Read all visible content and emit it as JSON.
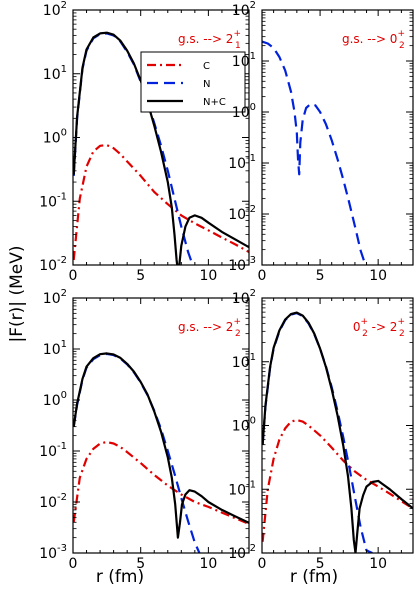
{
  "figure": {
    "ylabel": "|F(r)| (MeV)",
    "xlabel": "r (fm)"
  },
  "colors": {
    "C": "#e00000",
    "N": "#0022dd",
    "N+C": "#000000",
    "annotation": "#e00000"
  },
  "chart_data": [
    {
      "type": "line",
      "panel": "top-left",
      "annotation": {
        "text": "g.s. --> 2",
        "sup": "+",
        "sub": "1"
      },
      "xlim": [
        0,
        13
      ],
      "ylim": [
        0.01,
        100
      ],
      "yscale": "log",
      "xticks": [
        "0",
        "5",
        "10"
      ],
      "xtick_values": [
        0,
        5,
        10
      ],
      "yticks": [
        {
          "v": 0.01,
          "b": "10",
          "e": "-2"
        },
        {
          "v": 0.1,
          "b": "10",
          "e": "-1"
        },
        {
          "v": 1,
          "b": "10",
          "e": "0"
        },
        {
          "v": 10,
          "b": "10",
          "e": "1"
        },
        {
          "v": 100,
          "b": "10",
          "e": "2"
        }
      ],
      "legend": {
        "placement": "top-right",
        "entries": [
          "C",
          "N",
          "N+C"
        ]
      },
      "series": [
        {
          "name": "C",
          "style": "dashdot",
          "x": [
            0.05,
            0.5,
            1,
            1.5,
            2,
            2.5,
            3,
            3.5,
            4,
            5,
            6,
            7,
            8,
            9,
            10,
            11,
            12,
            13
          ],
          "y": [
            0.012,
            0.11,
            0.35,
            0.6,
            0.74,
            0.76,
            0.68,
            0.55,
            0.42,
            0.25,
            0.14,
            0.09,
            0.06,
            0.045,
            0.035,
            0.027,
            0.021,
            0.016
          ]
        },
        {
          "name": "N",
          "style": "dashed",
          "x": [
            0.05,
            0.3,
            0.7,
            1,
            1.5,
            2,
            2.5,
            3,
            3.5,
            4,
            4.5,
            5,
            5.5,
            6,
            6.5,
            7,
            7.5,
            8,
            8.5,
            9
          ],
          "y": [
            0.25,
            2,
            12,
            23,
            36,
            42,
            43,
            40,
            32,
            22,
            14,
            7.5,
            3.7,
            1.7,
            0.75,
            0.3,
            0.11,
            0.04,
            0.016,
            0.008
          ]
        },
        {
          "name": "N+C",
          "style": "solid",
          "x": [
            0.05,
            0.3,
            0.7,
            1,
            1.5,
            2,
            2.5,
            3,
            3.5,
            4,
            4.5,
            5,
            5.5,
            6,
            6.5,
            7,
            7.3,
            7.5,
            7.65,
            7.75,
            7.85,
            8,
            8.3,
            8.6,
            9,
            9.5,
            10,
            11,
            12,
            13
          ],
          "y": [
            0.26,
            2.1,
            12.5,
            24,
            37,
            43,
            44,
            41,
            33,
            23,
            14.5,
            7.8,
            3.6,
            1.55,
            0.6,
            0.2,
            0.08,
            0.03,
            0.012,
            0.008,
            0.01,
            0.02,
            0.04,
            0.055,
            0.06,
            0.055,
            0.046,
            0.033,
            0.025,
            0.019
          ]
        }
      ]
    },
    {
      "type": "line",
      "panel": "top-right",
      "annotation": {
        "text": "g.s. --> 0",
        "sup": "+",
        "sub": "2"
      },
      "xlim": [
        0,
        13
      ],
      "ylim": [
        0.001,
        100
      ],
      "yscale": "log",
      "xticks": [
        "0",
        "5",
        "10"
      ],
      "xtick_values": [
        0,
        5,
        10
      ],
      "yticks": [
        {
          "v": 0.001,
          "b": "10",
          "e": "-3"
        },
        {
          "v": 0.01,
          "b": "10",
          "e": "-2"
        },
        {
          "v": 0.1,
          "b": "10",
          "e": "-1"
        },
        {
          "v": 1,
          "b": "10",
          "e": "0"
        },
        {
          "v": 10,
          "b": "10",
          "e": "1"
        },
        {
          "v": 100,
          "b": "10",
          "e": "2"
        }
      ],
      "series": [
        {
          "name": "N",
          "style": "dashed",
          "x": [
            0,
            0.5,
            1,
            1.5,
            2,
            2.5,
            2.8,
            3,
            3.1,
            3.2,
            3.3,
            3.5,
            3.8,
            4.2,
            4.6,
            5,
            5.5,
            6,
            6.5,
            7,
            7.5,
            8,
            8.5,
            8.9
          ],
          "y": [
            24,
            22,
            18,
            12,
            6.5,
            2.5,
            1.0,
            0.4,
            0.12,
            0.06,
            0.25,
            0.7,
            1.2,
            1.45,
            1.35,
            1.0,
            0.58,
            0.28,
            0.12,
            0.047,
            0.017,
            0.0058,
            0.0019,
            0.001
          ]
        }
      ]
    },
    {
      "type": "line",
      "panel": "bottom-left",
      "annotation": {
        "text": "g.s. --> 2",
        "sup": "+",
        "sub": "2"
      },
      "xlim": [
        0,
        13
      ],
      "ylim": [
        0.001,
        100
      ],
      "yscale": "log",
      "xticks": [
        "0",
        "5",
        "10"
      ],
      "xtick_values": [
        0,
        5,
        10
      ],
      "yticks": [
        {
          "v": 0.001,
          "b": "10",
          "e": "-3"
        },
        {
          "v": 0.01,
          "b": "10",
          "e": "-2"
        },
        {
          "v": 0.1,
          "b": "10",
          "e": "-1"
        },
        {
          "v": 1,
          "b": "10",
          "e": "0"
        },
        {
          "v": 10,
          "b": "10",
          "e": "1"
        },
        {
          "v": 100,
          "b": "10",
          "e": "2"
        }
      ],
      "series": [
        {
          "name": "C",
          "style": "dashdot",
          "x": [
            0.05,
            0.5,
            1,
            1.5,
            2,
            2.5,
            3,
            3.5,
            4,
            5,
            6,
            7,
            8,
            9,
            10,
            11,
            12,
            13
          ],
          "y": [
            0.004,
            0.03,
            0.07,
            0.11,
            0.14,
            0.15,
            0.14,
            0.12,
            0.095,
            0.058,
            0.034,
            0.021,
            0.014,
            0.01,
            0.008,
            0.0062,
            0.0048,
            0.0037
          ]
        },
        {
          "name": "N",
          "style": "dashed",
          "x": [
            0.05,
            0.3,
            0.7,
            1,
            1.5,
            2,
            2.5,
            3,
            3.5,
            4,
            4.5,
            5,
            5.5,
            6,
            6.5,
            7,
            7.5,
            8,
            8.5,
            9,
            9.5
          ],
          "y": [
            0.3,
            0.8,
            2.5,
            4.3,
            6.3,
            7.6,
            8.0,
            7.6,
            6.5,
            5.0,
            3.5,
            2.2,
            1.25,
            0.62,
            0.27,
            0.1,
            0.036,
            0.012,
            0.0042,
            0.0016,
            0.0008
          ]
        },
        {
          "name": "N+C",
          "style": "solid",
          "x": [
            0.05,
            0.3,
            0.7,
            1,
            1.5,
            2,
            2.5,
            3,
            3.5,
            4,
            4.5,
            5,
            5.5,
            6,
            6.5,
            7,
            7.3,
            7.55,
            7.75,
            7.9,
            8.05,
            8.3,
            8.6,
            9,
            9.5,
            10,
            11,
            12,
            13
          ],
          "y": [
            0.3,
            0.85,
            2.6,
            4.5,
            6.6,
            7.9,
            8.2,
            7.8,
            6.7,
            5.1,
            3.6,
            2.25,
            1.28,
            0.6,
            0.24,
            0.075,
            0.03,
            0.009,
            0.002,
            0.004,
            0.009,
            0.014,
            0.017,
            0.016,
            0.013,
            0.01,
            0.007,
            0.0052,
            0.0039
          ]
        }
      ]
    },
    {
      "type": "line",
      "panel": "bottom-right",
      "annotation": {
        "text": "0",
        "sup": "+",
        "sub": "2",
        "text2": " -> 2",
        "sup2": "+",
        "sub2": "2"
      },
      "xlim": [
        0,
        13
      ],
      "ylim": [
        0.01,
        100
      ],
      "yscale": "log",
      "xticks": [
        "0",
        "5",
        "10"
      ],
      "xtick_values": [
        0,
        5,
        10
      ],
      "yticks": [
        {
          "v": 0.01,
          "b": "10",
          "e": "-2"
        },
        {
          "v": 0.1,
          "b": "10",
          "e": "-1"
        },
        {
          "v": 1,
          "b": "10",
          "e": "0"
        },
        {
          "v": 10,
          "b": "10",
          "e": "1"
        },
        {
          "v": 100,
          "b": "10",
          "e": "2"
        }
      ],
      "series": [
        {
          "name": "C",
          "style": "dashdot",
          "x": [
            0.05,
            0.5,
            1,
            1.5,
            2,
            2.5,
            3,
            3.5,
            4,
            5,
            6,
            7,
            8,
            9,
            10,
            11,
            12,
            13
          ],
          "y": [
            0.015,
            0.1,
            0.3,
            0.6,
            0.9,
            1.15,
            1.22,
            1.15,
            1.0,
            0.7,
            0.45,
            0.28,
            0.19,
            0.14,
            0.11,
            0.085,
            0.065,
            0.05
          ]
        },
        {
          "name": "N",
          "style": "dashed",
          "x": [
            0.05,
            0.3,
            0.7,
            1,
            1.5,
            2,
            2.5,
            3,
            3.5,
            4,
            4.5,
            5,
            5.5,
            6,
            6.5,
            7,
            7.5,
            8,
            8.5,
            9,
            9.5
          ],
          "y": [
            0.5,
            2,
            8,
            16,
            30,
            45,
            55,
            58,
            52,
            40,
            27,
            16,
            8.5,
            4,
            1.7,
            0.65,
            0.23,
            0.075,
            0.025,
            0.011,
            0.01
          ]
        },
        {
          "name": "N+C",
          "style": "solid",
          "x": [
            0.05,
            0.3,
            0.7,
            1,
            1.5,
            2,
            2.5,
            3,
            3.5,
            4,
            4.5,
            5,
            5.5,
            6,
            6.5,
            7,
            7.4,
            7.7,
            7.9,
            8.05,
            8.2,
            8.4,
            8.7,
            9,
            9.5,
            10,
            11,
            12,
            13
          ],
          "y": [
            0.5,
            2.1,
            8.3,
            16.5,
            31,
            46,
            56,
            59,
            53,
            41,
            27.5,
            16,
            8.3,
            3.7,
            1.45,
            0.48,
            0.16,
            0.05,
            0.016,
            0.01,
            0.02,
            0.05,
            0.08,
            0.11,
            0.13,
            0.135,
            0.1,
            0.07,
            0.05
          ]
        }
      ]
    }
  ]
}
